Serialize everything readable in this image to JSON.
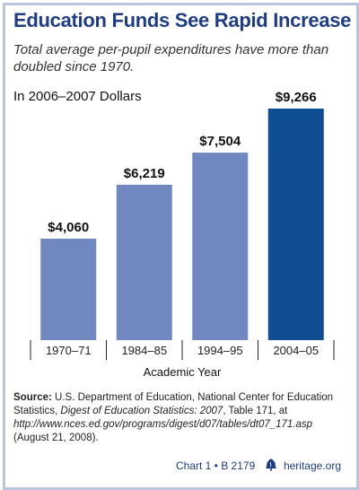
{
  "chart_data": {
    "type": "bar",
    "title": "Education Funds See Rapid Increase",
    "subtitle": "Total average per-pupil expenditures have more than doubled since 1970.",
    "unit_label": "In 2006–2007 Dollars",
    "xlabel": "Academic Year",
    "ylabel": "",
    "categories": [
      "1970–71",
      "1984–85",
      "1994–95",
      "2004–05"
    ],
    "values": [
      4060,
      6219,
      7504,
      9266
    ],
    "value_labels": [
      "$4,060",
      "$6,219",
      "$7,504",
      "$9,266"
    ],
    "ylim": [
      0,
      9266
    ],
    "grid": false,
    "colors": {
      "bar": "#7088bf",
      "highlight_bar": "#0e4d92",
      "highlight_index": 3,
      "title": "#1f3d80",
      "frame": "#b9c5dd"
    }
  },
  "source": {
    "label": "Source:",
    "text_1": "U.S. Department of Education, National Center for Education Statistics,",
    "title_italic": "Digest of Education Statistics: 2007",
    "text_2": ", Table 171, at",
    "url": "http://www.nces.ed.gov/programs/digest/d07/tables/dt07_171.asp",
    "date": "(August 21, 2008)."
  },
  "footer": {
    "chart_ref": "Chart 1 • B 2179",
    "site": "heritage.org",
    "logo_icon": "liberty-bell-icon"
  }
}
